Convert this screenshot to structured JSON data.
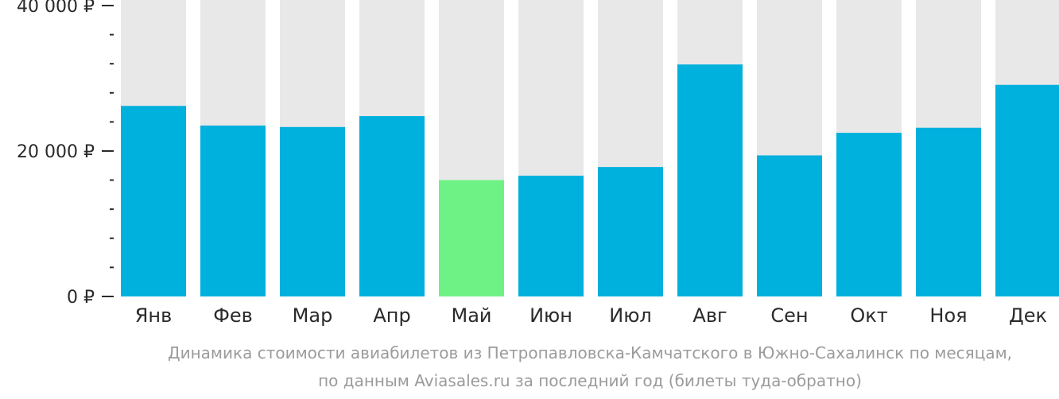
{
  "chart_data": {
    "type": "bar",
    "categories": [
      "Янв",
      "Фев",
      "Мар",
      "Апр",
      "Май",
      "Июн",
      "Июл",
      "Авг",
      "Сен",
      "Окт",
      "Ноя",
      "Дек"
    ],
    "values": [
      26200,
      23500,
      23300,
      24800,
      16000,
      16600,
      17800,
      31900,
      19400,
      22500,
      23200,
      29100
    ],
    "ylim": [
      0,
      40000
    ],
    "yticks": [
      {
        "value": 0,
        "label": "0 ₽"
      },
      {
        "value": 20000,
        "label": "20 000 ₽"
      },
      {
        "value": 40000,
        "label": "40 000 ₽"
      }
    ],
    "minor_tick_step": 4000,
    "highlight_index": 4,
    "colors": {
      "bar": "#00b0dd",
      "highlight": "#6ef286",
      "track": "#e8e8e8",
      "axis": "#2a2a2a"
    },
    "title": "",
    "xlabel": "",
    "ylabel": ""
  },
  "caption": {
    "line1": "Динамика стоимости авиабилетов из Петропавловска-Камчатского в Южно-Сахалинск по месяцам,",
    "line2": "по данным Aviasales.ru за последний год (билеты туда-обратно)"
  }
}
